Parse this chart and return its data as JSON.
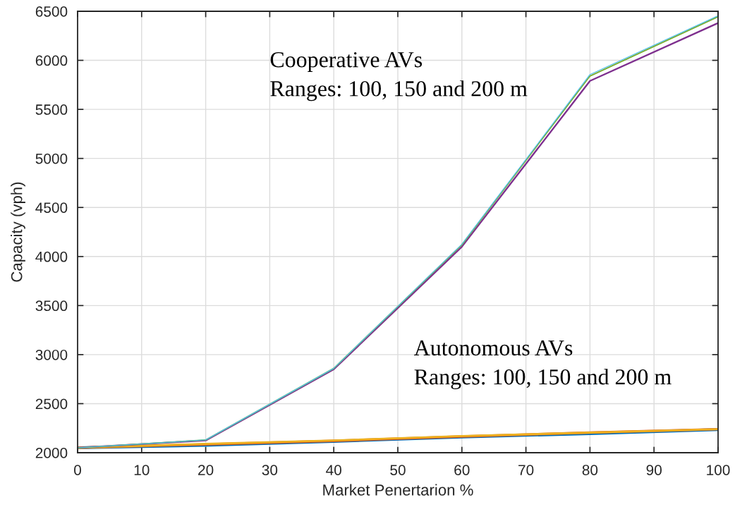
{
  "chart_data": {
    "type": "line",
    "x": [
      0,
      20,
      40,
      60,
      80,
      100
    ],
    "series": [
      {
        "color": "#0072bd",
        "values": [
          2050,
          2075,
          2115,
          2160,
          2195,
          2235
        ]
      },
      {
        "color": "#d95319",
        "values": [
          2050,
          2085,
          2120,
          2165,
          2205,
          2240
        ]
      },
      {
        "color": "#edb120",
        "values": [
          2050,
          2090,
          2125,
          2170,
          2205,
          2240
        ]
      },
      {
        "color": "#7e2f8e",
        "values": [
          2050,
          2125,
          2850,
          4100,
          5790,
          6380
        ]
      },
      {
        "color": "#77ac30",
        "values": [
          2050,
          2130,
          2860,
          4120,
          5840,
          6445
        ]
      },
      {
        "color": "#4dbeee",
        "values": [
          2050,
          2130,
          2860,
          4125,
          5855,
          6455
        ]
      }
    ],
    "xlabel": "Market Penertarion %",
    "ylabel": "Capacity (vph)",
    "xlim": [
      0,
      100
    ],
    "xticks": [
      0,
      10,
      20,
      30,
      40,
      50,
      60,
      70,
      80,
      90,
      100
    ],
    "ylim": [
      2000,
      6500
    ],
    "yticks": [
      2000,
      2500,
      3000,
      3500,
      4000,
      4500,
      5000,
      5500,
      6000,
      6500
    ],
    "annotations": [
      "Cooperative AVs\nRanges: 100, 150 and 200 m",
      "Autonomous AVs\nRanges: 100, 150 and 200 m"
    ],
    "grid": true,
    "line_style": "solid"
  }
}
